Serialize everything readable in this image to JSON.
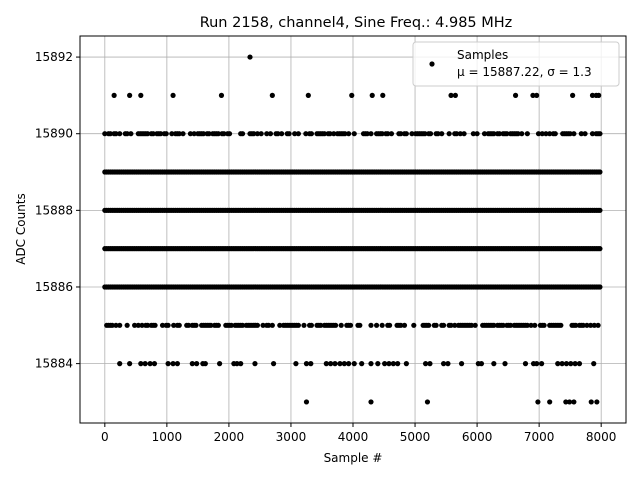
{
  "chart_data": {
    "type": "scatter",
    "title": "Run 2158, channel4, Sine Freq.: 4.985 MHz",
    "xlabel": "Sample #",
    "ylabel": "ADC Counts",
    "xlim": [
      -400,
      8400
    ],
    "ylim": [
      15882.45,
      15892.55
    ],
    "xticks": [
      0,
      1000,
      2000,
      3000,
      4000,
      5000,
      6000,
      7000,
      8000
    ],
    "yticks": [
      15884,
      15886,
      15888,
      15890,
      15892
    ],
    "grid": true,
    "legend": {
      "placement": "top-right",
      "entries": [
        "Samples",
        "μ = 15887.22, σ = 1.3"
      ]
    },
    "series": [
      {
        "name": "Samples",
        "color": "#000000",
        "x_range": [
          0,
          8000
        ],
        "bands": [
          {
            "y": 15886,
            "density": 1.0
          },
          {
            "y": 15887,
            "density": 1.0
          },
          {
            "y": 15888,
            "density": 1.0
          },
          {
            "y": 15889,
            "density": 1.0
          },
          {
            "y": 15885,
            "density": 0.55
          },
          {
            "y": 15890,
            "density": 0.55
          }
        ],
        "sparse_points": [
          {
            "x": 2340,
            "y": 15892
          },
          {
            "x": 150,
            "y": 15891
          },
          {
            "x": 400,
            "y": 15891
          },
          {
            "x": 580,
            "y": 15891
          },
          {
            "x": 1100,
            "y": 15891
          },
          {
            "x": 1880,
            "y": 15891
          },
          {
            "x": 2700,
            "y": 15891
          },
          {
            "x": 3280,
            "y": 15891
          },
          {
            "x": 3980,
            "y": 15891
          },
          {
            "x": 4310,
            "y": 15891
          },
          {
            "x": 4480,
            "y": 15891
          },
          {
            "x": 5580,
            "y": 15891
          },
          {
            "x": 5650,
            "y": 15891
          },
          {
            "x": 6620,
            "y": 15891
          },
          {
            "x": 6900,
            "y": 15891
          },
          {
            "x": 6960,
            "y": 15891
          },
          {
            "x": 7540,
            "y": 15891
          },
          {
            "x": 7860,
            "y": 15891
          },
          {
            "x": 7920,
            "y": 15891
          },
          {
            "x": 7960,
            "y": 15891
          },
          {
            "x": 3250,
            "y": 15883
          },
          {
            "x": 4290,
            "y": 15883
          },
          {
            "x": 5200,
            "y": 15883
          },
          {
            "x": 6980,
            "y": 15883
          },
          {
            "x": 7170,
            "y": 15883
          },
          {
            "x": 7430,
            "y": 15883
          },
          {
            "x": 7490,
            "y": 15883
          },
          {
            "x": 7560,
            "y": 15883
          },
          {
            "x": 7840,
            "y": 15883
          },
          {
            "x": 7930,
            "y": 15883
          },
          {
            "x": 240,
            "y": 15884
          },
          {
            "x": 400,
            "y": 15884
          },
          {
            "x": 580,
            "y": 15884
          },
          {
            "x": 650,
            "y": 15884
          },
          {
            "x": 730,
            "y": 15884
          },
          {
            "x": 800,
            "y": 15884
          },
          {
            "x": 1020,
            "y": 15884
          },
          {
            "x": 1100,
            "y": 15884
          },
          {
            "x": 1170,
            "y": 15884
          },
          {
            "x": 1410,
            "y": 15884
          },
          {
            "x": 1480,
            "y": 15884
          },
          {
            "x": 1580,
            "y": 15884
          },
          {
            "x": 1620,
            "y": 15884
          },
          {
            "x": 1850,
            "y": 15884
          },
          {
            "x": 2080,
            "y": 15884
          },
          {
            "x": 2130,
            "y": 15884
          },
          {
            "x": 2190,
            "y": 15884
          },
          {
            "x": 2420,
            "y": 15884
          },
          {
            "x": 2720,
            "y": 15884
          },
          {
            "x": 3080,
            "y": 15884
          },
          {
            "x": 3250,
            "y": 15884
          },
          {
            "x": 3320,
            "y": 15884
          },
          {
            "x": 3570,
            "y": 15884
          },
          {
            "x": 3640,
            "y": 15884
          },
          {
            "x": 3710,
            "y": 15884
          },
          {
            "x": 3790,
            "y": 15884
          },
          {
            "x": 3860,
            "y": 15884
          },
          {
            "x": 3930,
            "y": 15884
          },
          {
            "x": 4020,
            "y": 15884
          },
          {
            "x": 4140,
            "y": 15884
          },
          {
            "x": 4290,
            "y": 15884
          },
          {
            "x": 4400,
            "y": 15884
          },
          {
            "x": 4510,
            "y": 15884
          },
          {
            "x": 4580,
            "y": 15884
          },
          {
            "x": 4650,
            "y": 15884
          },
          {
            "x": 4720,
            "y": 15884
          },
          {
            "x": 4860,
            "y": 15884
          },
          {
            "x": 5170,
            "y": 15884
          },
          {
            "x": 5240,
            "y": 15884
          },
          {
            "x": 5460,
            "y": 15884
          },
          {
            "x": 5530,
            "y": 15884
          },
          {
            "x": 5750,
            "y": 15884
          },
          {
            "x": 6020,
            "y": 15884
          },
          {
            "x": 6070,
            "y": 15884
          },
          {
            "x": 6270,
            "y": 15884
          },
          {
            "x": 6450,
            "y": 15884
          },
          {
            "x": 6780,
            "y": 15884
          },
          {
            "x": 6910,
            "y": 15884
          },
          {
            "x": 6960,
            "y": 15884
          },
          {
            "x": 7040,
            "y": 15884
          },
          {
            "x": 7300,
            "y": 15884
          },
          {
            "x": 7370,
            "y": 15884
          },
          {
            "x": 7440,
            "y": 15884
          },
          {
            "x": 7510,
            "y": 15884
          },
          {
            "x": 7580,
            "y": 15884
          },
          {
            "x": 7650,
            "y": 15884
          },
          {
            "x": 7880,
            "y": 15884
          }
        ]
      }
    ]
  }
}
